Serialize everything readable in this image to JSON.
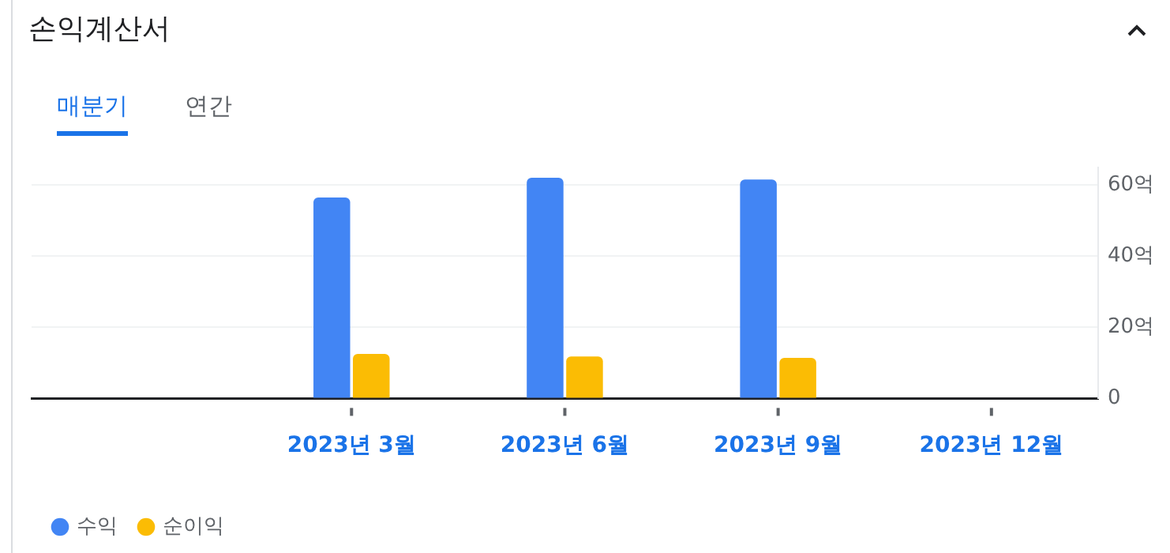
{
  "chart_data": {
    "type": "bar",
    "title": "손익계산서",
    "annotations": [
      "매분기",
      "연간"
    ],
    "categories": [
      null,
      "2023년 3월",
      "2023년 6월",
      "2023년 9월",
      "2023년 12월"
    ],
    "series": [
      {
        "name": "수익",
        "color": "#4285f4",
        "values": [
          null,
          56.5,
          62,
          61.5,
          null
        ]
      },
      {
        "name": "순이익",
        "color": "#fbbc04",
        "values": [
          null,
          12.5,
          11.8,
          11.4,
          null
        ]
      }
    ],
    "ylim": [
      0,
      65
    ],
    "yticks": [
      0,
      {
        "value": 20,
        "label": "20억"
      },
      {
        "value": 40,
        "label": "40억"
      },
      {
        "value": 60,
        "label": "60억"
      }
    ],
    "grid": "y",
    "legend": "bottom left"
  }
}
